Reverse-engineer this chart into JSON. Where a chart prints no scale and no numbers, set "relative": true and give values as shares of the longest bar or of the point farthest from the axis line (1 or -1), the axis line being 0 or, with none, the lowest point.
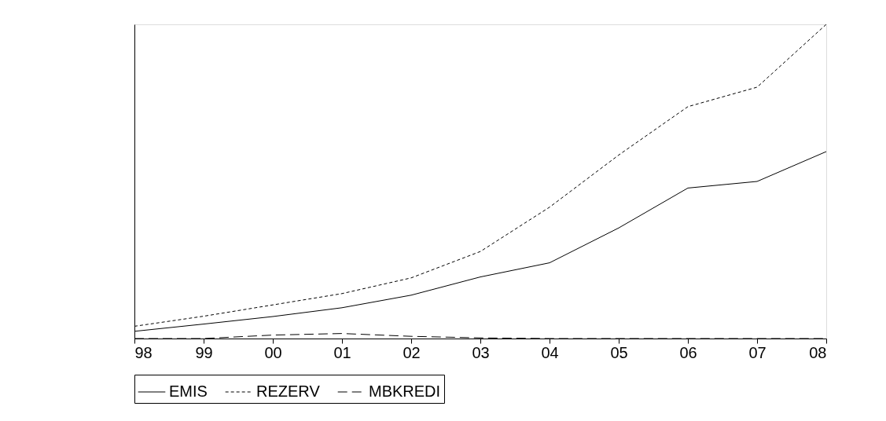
{
  "chart_data": {
    "type": "line",
    "categories": [
      "98",
      "99",
      "00",
      "01",
      "02",
      "03",
      "04",
      "05",
      "06",
      "07",
      "08"
    ],
    "relative": true,
    "grid": false,
    "legend": "bottom",
    "marker": "none",
    "series": [
      {
        "name": "EMIS",
        "color": "#000000",
        "line_style": "solid",
        "values": [
          0.023,
          0.046,
          0.07,
          0.098,
          0.138,
          0.196,
          0.241,
          0.352,
          0.479,
          0.5,
          0.595
        ]
      },
      {
        "name": "REZERV",
        "color": "#000000",
        "line_style": "dotted",
        "values": [
          0.039,
          0.071,
          0.107,
          0.143,
          0.193,
          0.277,
          0.418,
          0.584,
          0.738,
          0.8,
          1
        ]
      },
      {
        "name": "MBKREDI",
        "color": "#000000",
        "line_style": "dashed",
        "values": [
          0,
          0,
          0.011,
          0.016,
          0.007,
          0.002,
          0,
          0,
          0,
          0,
          0
        ]
      }
    ]
  }
}
